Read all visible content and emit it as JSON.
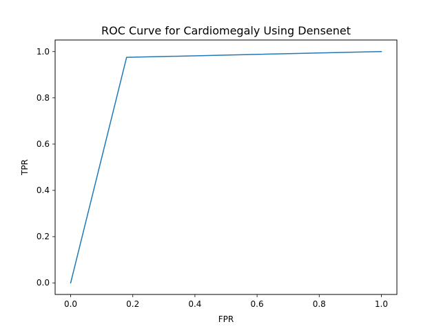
{
  "chart_data": {
    "type": "line",
    "title": "ROC Curve for Cardiomegaly Using Densenet",
    "xlabel": "FPR",
    "ylabel": "TPR",
    "xlim": [
      -0.05,
      1.05
    ],
    "ylim": [
      -0.05,
      1.05
    ],
    "xticks": [
      0.0,
      0.2,
      0.4,
      0.6,
      0.8,
      1.0
    ],
    "xtick_labels": [
      "0.0",
      "0.2",
      "0.4",
      "0.6",
      "0.8",
      "1.0"
    ],
    "yticks": [
      0.0,
      0.2,
      0.4,
      0.6,
      0.8,
      1.0
    ],
    "ytick_labels": [
      "0.0",
      "0.2",
      "0.4",
      "0.6",
      "0.8",
      "1.0"
    ],
    "grid": false,
    "series": [
      {
        "x": [
          0.0,
          0.18,
          1.0
        ],
        "y": [
          0.0,
          0.975,
          1.0
        ],
        "color": "#1f77b4"
      }
    ]
  }
}
